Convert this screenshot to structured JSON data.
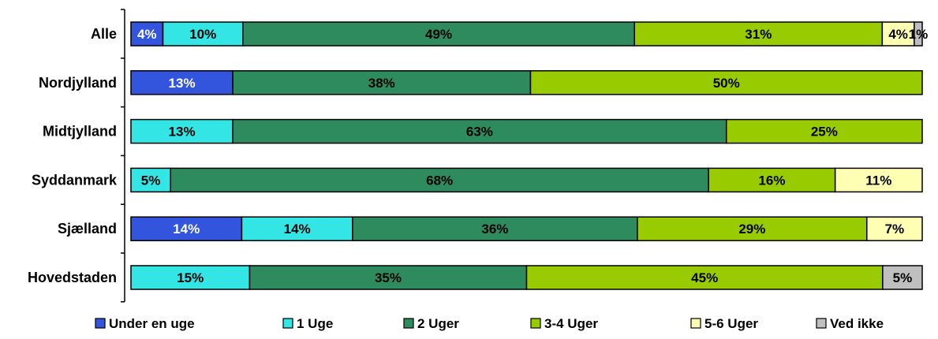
{
  "chart_data": {
    "type": "bar",
    "orientation": "horizontal",
    "stacked": "percent",
    "categories": [
      "Alle",
      "Nordjylland",
      "Midtjylland",
      "Syddanmark",
      "Sjælland",
      "Hovedstaden"
    ],
    "series": [
      {
        "name": "Under en uge",
        "color": "#3355DD",
        "label_color": "#ffffff",
        "values": [
          4,
          13,
          0,
          0,
          14,
          0
        ]
      },
      {
        "name": "1 Uge",
        "color": "#33E5E5",
        "label_color": "#000000",
        "values": [
          10,
          0,
          13,
          5,
          14,
          15
        ]
      },
      {
        "name": "2 Uger",
        "color": "#2E8B5E",
        "label_color": "#000000",
        "values": [
          49,
          38,
          63,
          68,
          36,
          35
        ]
      },
      {
        "name": "3-4 Uger",
        "color": "#99CC00",
        "label_color": "#000000",
        "values": [
          31,
          50,
          25,
          16,
          29,
          45
        ]
      },
      {
        "name": "5-6 Uger",
        "color": "#FFFFB3",
        "label_color": "#000000",
        "values": [
          4,
          0,
          0,
          11,
          7,
          0
        ]
      },
      {
        "name": "Ved ikke",
        "color": "#BFBFBF",
        "label_color": "#000000",
        "values": [
          1,
          0,
          0,
          0,
          0,
          5
        ]
      }
    ],
    "value_suffix": "%",
    "xlim": [
      0,
      100
    ],
    "legend_position": "bottom",
    "grid": false
  }
}
